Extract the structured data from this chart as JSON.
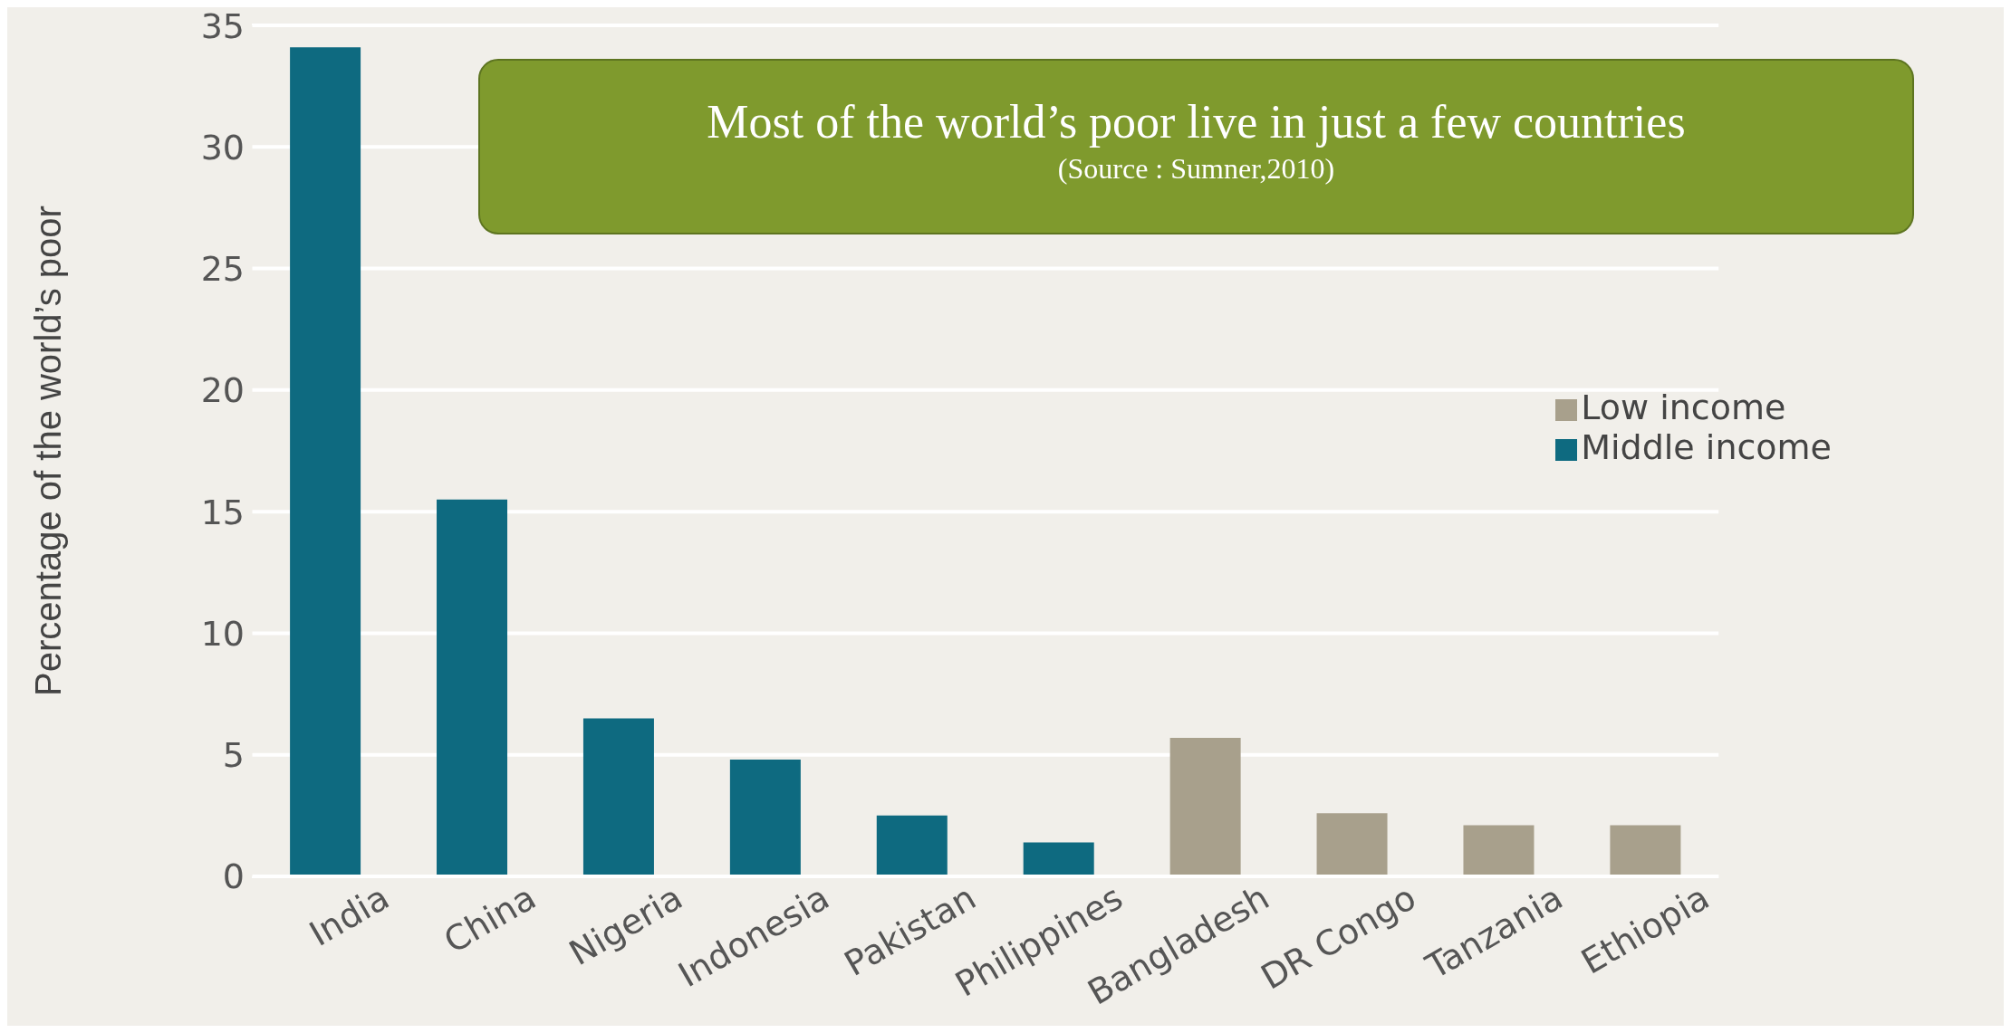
{
  "chart_data": {
    "type": "bar",
    "title": "Most of the world’s poor live in just a few countries",
    "annotations": [
      "(Source : Sumner,2010)"
    ],
    "ylabel": "Percentage of the world’s poor",
    "categories": [
      "India",
      "China",
      "Nigeria",
      "Indonesia",
      "Pakistan",
      "Philippines",
      "Bangladesh",
      "DR Congo",
      "Tanzania",
      "Ethiopia"
    ],
    "series": [
      {
        "name": "Low income",
        "color": "#a8a08c",
        "values": [
          null,
          null,
          null,
          null,
          null,
          null,
          5.7,
          2.6,
          2.1,
          2.1
        ]
      },
      {
        "name": "Middle income",
        "color": "#0e6a80",
        "values": [
          34.1,
          15.5,
          6.5,
          4.8,
          2.5,
          1.4,
          null,
          null,
          null,
          null
        ]
      }
    ],
    "stacked": true,
    "ylim": [
      0,
      35
    ],
    "yticks": [
      0,
      5,
      10,
      15,
      20,
      25,
      30,
      35
    ],
    "grid": "y",
    "legend": "right"
  }
}
